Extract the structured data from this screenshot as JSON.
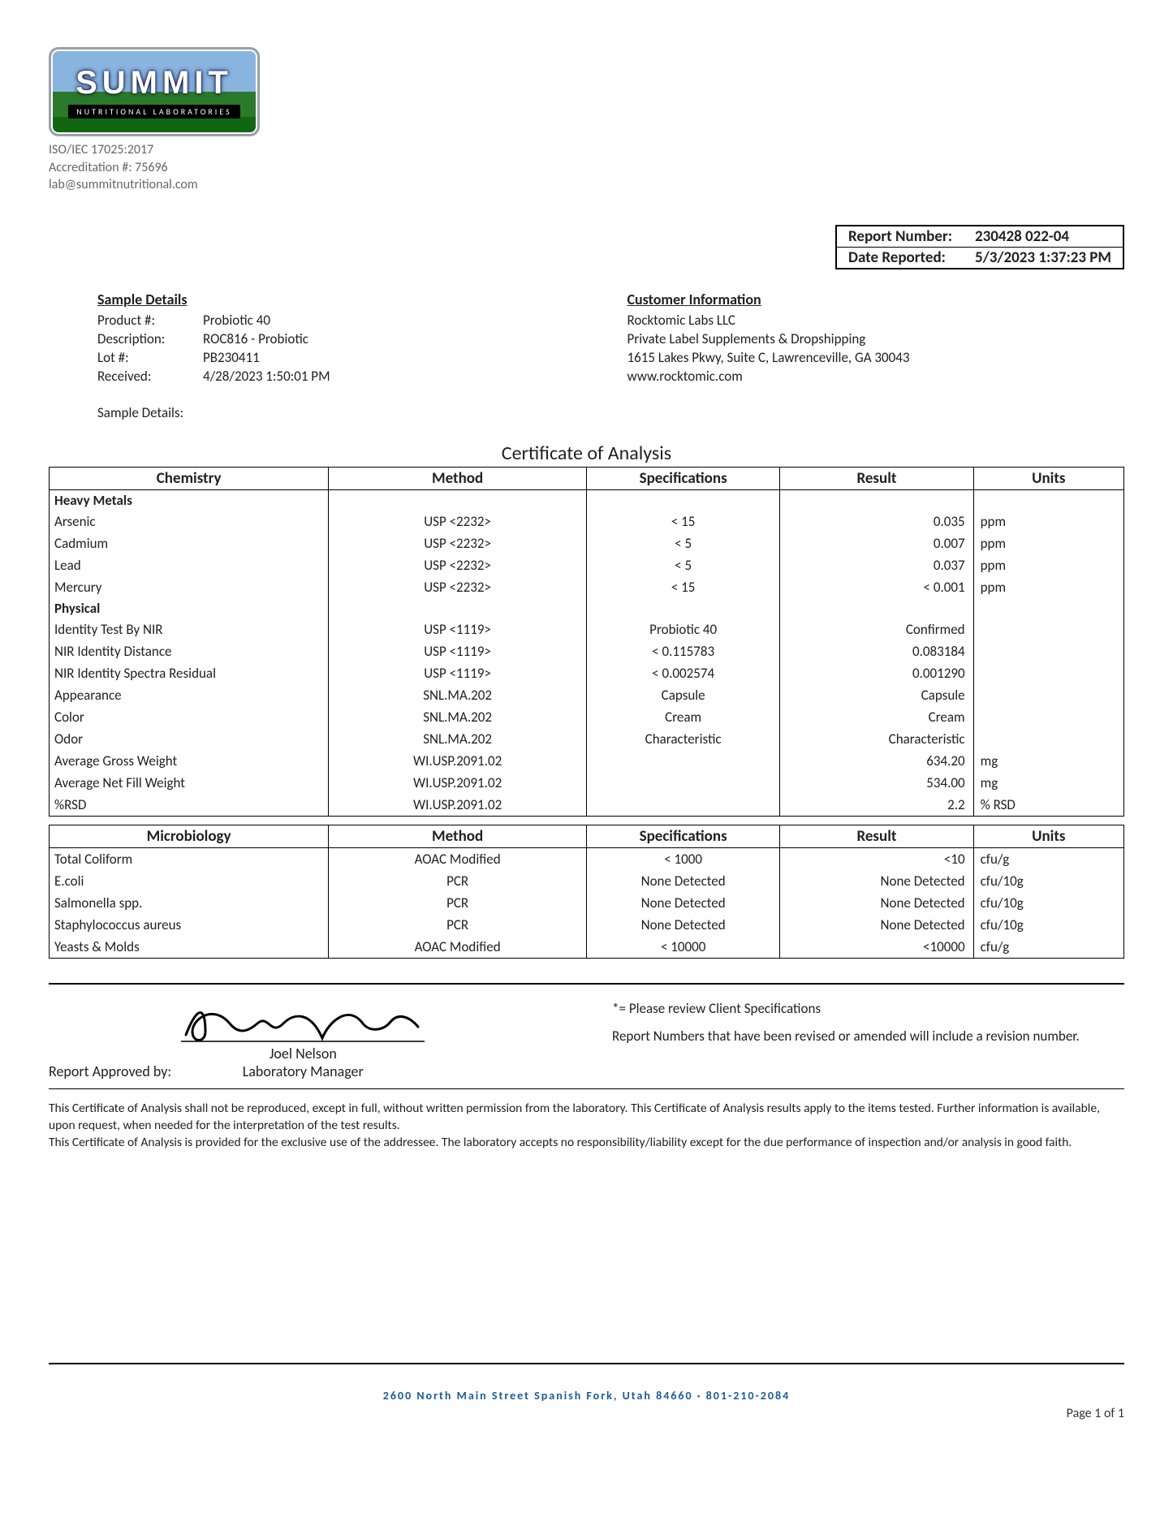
{
  "logo": {
    "brand": "SUMMIT",
    "tagline": "NUTRITIONAL LABORATORIES"
  },
  "accreditation": {
    "line1": "ISO/IEC 17025:2017",
    "line2": "Accreditation #: 75696",
    "line3": "lab@summitnutritional.com"
  },
  "report_box": {
    "report_number_label": "Report Number:",
    "report_number": "230428 022-04",
    "date_reported_label": "Date Reported:",
    "date_reported": "5/3/2023 1:37:23 PM"
  },
  "sample": {
    "heading": "Sample Details",
    "product_label": "Product #:",
    "product": "Probiotic 40",
    "desc_label": "Description:",
    "desc": "ROC816 - Probiotic",
    "lot_label": "Lot #:",
    "lot": "PB230411",
    "received_label": "Received:",
    "received": "4/28/2023 1:50:01 PM",
    "extra_label": "Sample Details:"
  },
  "customer": {
    "heading": "Customer Information",
    "name": "Rocktomic Labs LLC",
    "line2": "Private Label Supplements & Dropshipping",
    "line3": "1615 Lakes Pkwy, Suite C, Lawrenceville, GA 30043",
    "line4": "www.rocktomic.com"
  },
  "coa_title": "Certificate of Analysis",
  "headers": {
    "chemistry": "Chemistry",
    "microbiology": "Microbiology",
    "method": "Method",
    "specifications": "Specifications",
    "result": "Result",
    "units": "Units"
  },
  "chem_sections": [
    {
      "kind": "sub",
      "label": "Heavy Metals"
    },
    {
      "kind": "row",
      "name": "Arsenic",
      "method": "USP <2232>",
      "spec": "< 15",
      "result": "0.035",
      "units": "ppm"
    },
    {
      "kind": "row",
      "name": "Cadmium",
      "method": "USP <2232>",
      "spec": "< 5",
      "result": "0.007",
      "units": "ppm"
    },
    {
      "kind": "row",
      "name": "Lead",
      "method": "USP <2232>",
      "spec": "< 5",
      "result": "0.037",
      "units": "ppm"
    },
    {
      "kind": "row",
      "name": "Mercury",
      "method": "USP <2232>",
      "spec": "< 15",
      "result": "< 0.001",
      "units": "ppm"
    },
    {
      "kind": "sub",
      "label": "Physical"
    },
    {
      "kind": "row",
      "name": "Identity Test By NIR",
      "method": "USP <1119>",
      "spec": "Probiotic 40",
      "result": "Confirmed",
      "units": ""
    },
    {
      "kind": "row",
      "name": "NIR Identity Distance",
      "method": "USP <1119>",
      "spec": "< 0.115783",
      "result": "0.083184",
      "units": ""
    },
    {
      "kind": "row",
      "name": "NIR Identity Spectra Residual",
      "method": "USP <1119>",
      "spec": "< 0.002574",
      "result": "0.001290",
      "units": ""
    },
    {
      "kind": "row",
      "name": "Appearance",
      "method": "SNL.MA.202",
      "spec": "Capsule",
      "result": "Capsule",
      "units": ""
    },
    {
      "kind": "row",
      "name": "Color",
      "method": "SNL.MA.202",
      "spec": "Cream",
      "result": "Cream",
      "units": ""
    },
    {
      "kind": "row",
      "name": "Odor",
      "method": "SNL.MA.202",
      "spec": "Characteristic",
      "result": "Characteristic",
      "units": ""
    },
    {
      "kind": "row",
      "name": "Average Gross Weight",
      "method": "WI.USP.2091.02",
      "spec": "",
      "result": "634.20",
      "units": "mg"
    },
    {
      "kind": "row",
      "name": "Average Net Fill Weight",
      "method": "WI.USP.2091.02",
      "spec": "",
      "result": "534.00",
      "units": "mg"
    },
    {
      "kind": "row",
      "name": "%RSD",
      "method": "WI.USP.2091.02",
      "spec": "",
      "result": "2.2",
      "units": "% RSD"
    }
  ],
  "micro_rows": [
    {
      "name": "Total Coliform",
      "method": "AOAC Modified",
      "spec": "< 1000",
      "result": "<10",
      "units": "cfu/g"
    },
    {
      "name": "E.coli",
      "method": "PCR",
      "spec": "None Detected",
      "result": "None Detected",
      "units": "cfu/10g"
    },
    {
      "name": "Salmonella spp.",
      "method": "PCR",
      "spec": "None Detected",
      "result": "None Detected",
      "units": "cfu/10g"
    },
    {
      "name": "Staphylococcus aureus",
      "method": "PCR",
      "spec": "None Detected",
      "result": "None Detected",
      "units": "cfu/10g"
    },
    {
      "name": "Yeasts & Molds",
      "method": "AOAC Modified",
      "spec": "< 10000",
      "result": "<10000",
      "units": "cfu/g"
    }
  ],
  "approval": {
    "label": "Report Approved by:",
    "signer_name": "Joel Nelson",
    "signer_title": "Laboratory Manager",
    "note1": "*= Please review Client Specifications",
    "note2": "Report Numbers that have been revised or amended will include a revision number."
  },
  "disclaimer": {
    "p1": "This Certificate of Analysis shall not be reproduced, except in full, without written permission from the laboratory. This Certificate of Analysis results apply to the items tested. Further information is available, upon request, when needed for the interpretation of the test results.",
    "p2": "This Certificate of Analysis is provided for the exclusive use of the addressee. The laboratory accepts no responsibility/liability except for the due performance of inspection and/or analysis in good faith."
  },
  "footer_address": "2600 North Main Street Spanish Fork, Utah  84660 · 801-210-2084",
  "page": "Page 1 of 1",
  "colors": {
    "text": "#222",
    "border": "#000000",
    "footer": "#1a5a99",
    "grey": "#666666"
  }
}
